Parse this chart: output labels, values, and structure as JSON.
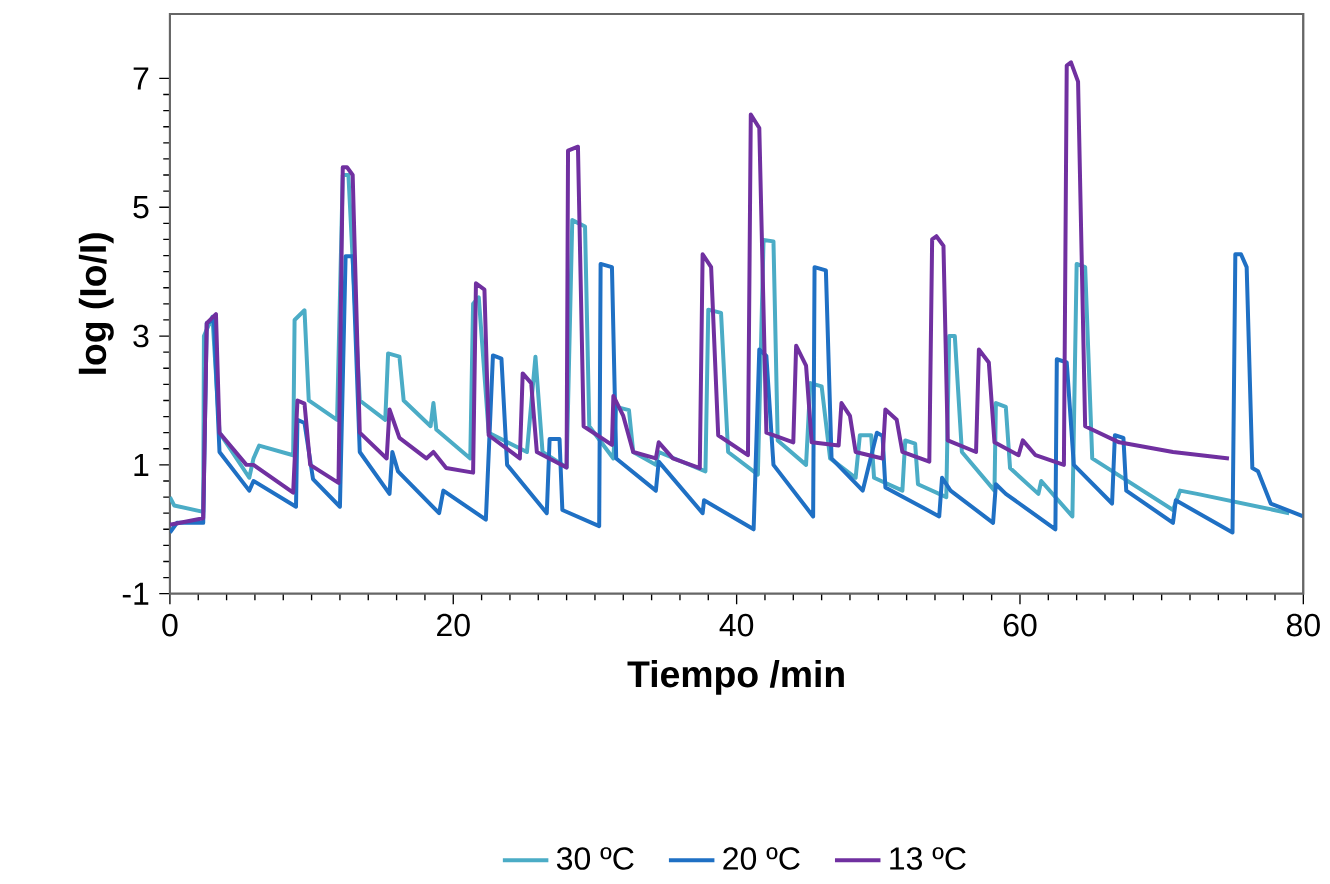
{
  "chart_data": {
    "type": "line",
    "xlabel": "Tiempo /min",
    "ylabel": "log (Io/I)",
    "xlim": [
      0,
      80
    ],
    "xticks": [
      0,
      20,
      40,
      60,
      80
    ],
    "ylim": [
      -1,
      8
    ],
    "yticks": [
      -1,
      1,
      3,
      5,
      7
    ],
    "grid": false,
    "legend": "bottom",
    "marker": "none",
    "line_style": "solid",
    "series": [
      {
        "name": "30 ºC",
        "color": "#4bacc6",
        "x": [
          0,
          0.3,
          2.35,
          2.4,
          3.0,
          3.5,
          5.6,
          5.9,
          6.3,
          8.7,
          8.8,
          9.5,
          9.8,
          11.8,
          12.2,
          12.6,
          13.4,
          15.2,
          15.4,
          16.2,
          16.5,
          18.4,
          18.6,
          18.8,
          21.2,
          21.4,
          21.8,
          22.5,
          25.2,
          25.8,
          26.3,
          28.0,
          28.4,
          29.3,
          29.6,
          31.3,
          31.5,
          32.4,
          32.7,
          34.3,
          34.5,
          37.8,
          38.0,
          38.9,
          39.4,
          41.5,
          41.9,
          42.6,
          42.9,
          44.9,
          45.2,
          46.0,
          46.6,
          48.4,
          48.7,
          49.5,
          49.7,
          51.7,
          51.9,
          52.6,
          52.8,
          54.8,
          55.0,
          55.4,
          55.9,
          58.2,
          58.3,
          59.0,
          59.3,
          61.3,
          61.5,
          63.7,
          64.0,
          64.6,
          65.1,
          70.8,
          71.3,
          72.5,
          79
        ],
        "values": [
          0.5,
          0.37,
          0.27,
          3.0,
          3.3,
          1.5,
          0.8,
          1.1,
          1.3,
          1.15,
          3.25,
          3.4,
          2.0,
          1.7,
          5.5,
          5.5,
          2.0,
          1.7,
          2.73,
          2.68,
          2.0,
          1.6,
          1.96,
          1.55,
          1.1,
          3.5,
          3.6,
          1.5,
          1.2,
          2.68,
          1.2,
          0.96,
          4.8,
          4.7,
          1.6,
          1.1,
          1.9,
          1.85,
          1.2,
          1.0,
          1.2,
          0.9,
          3.41,
          3.36,
          1.2,
          0.85,
          4.49,
          4.47,
          1.38,
          1.0,
          2.27,
          2.22,
          1.1,
          0.8,
          1.46,
          1.46,
          0.8,
          0.6,
          1.38,
          1.33,
          0.7,
          0.5,
          3.0,
          3.0,
          1.2,
          0.6,
          1.96,
          1.9,
          0.95,
          0.55,
          0.75,
          0.2,
          4.12,
          4.07,
          1.1,
          0.3,
          0.6,
          0.55,
          0.25
        ]
      },
      {
        "name": "20 ºC",
        "color": "#1f70c4",
        "x": [
          0,
          0.5,
          2.35,
          2.6,
          3.1,
          3.5,
          5.6,
          5.9,
          8.9,
          9.0,
          9.5,
          10.1,
          12.0,
          12.4,
          12.9,
          13.4,
          15.5,
          15.7,
          16.1,
          19.0,
          19.3,
          22.3,
          22.8,
          23.4,
          23.8,
          26.6,
          26.8,
          27.5,
          27.7,
          30.3,
          30.4,
          31.2,
          31.5,
          34.3,
          34.5,
          37.6,
          37.7,
          41.2,
          41.6,
          42.1,
          42.6,
          45.4,
          45.5,
          46.3,
          46.7,
          48.9,
          49.9,
          50.3,
          50.5,
          54.3,
          54.5,
          55.1,
          58.1,
          58.3,
          59.0,
          62.5,
          62.6,
          63.3,
          63.8,
          66.5,
          66.7,
          67.3,
          67.5,
          70.8,
          71.0,
          75.0,
          75.2,
          75.6,
          76.0,
          76.4,
          76.8,
          77.7,
          80
        ],
        "values": [
          -0.05,
          0.1,
          0.1,
          3.2,
          3.25,
          1.2,
          0.6,
          0.75,
          0.35,
          1.7,
          1.65,
          0.78,
          0.35,
          4.24,
          4.24,
          1.2,
          0.55,
          1.2,
          0.9,
          0.25,
          0.6,
          0.15,
          2.7,
          2.65,
          1.0,
          0.25,
          1.4,
          1.4,
          0.3,
          0.05,
          4.12,
          4.07,
          1.1,
          0.6,
          1.05,
          0.25,
          0.45,
          0.0,
          2.79,
          2.69,
          1.0,
          0.2,
          4.07,
          4.02,
          1.1,
          0.6,
          1.5,
          1.45,
          0.65,
          0.2,
          0.8,
          0.6,
          0.1,
          0.7,
          0.55,
          0.0,
          2.64,
          2.59,
          1.0,
          0.4,
          1.46,
          1.42,
          0.6,
          0.1,
          0.45,
          -0.05,
          4.27,
          4.27,
          4.07,
          0.95,
          0.9,
          0.4,
          0.2
        ]
      },
      {
        "name": "13 ºC",
        "color": "#7030a0",
        "x": [
          0,
          2.35,
          2.6,
          3.25,
          3.5,
          5.4,
          5.9,
          8.7,
          9.0,
          9.5,
          9.9,
          11.9,
          12.2,
          12.5,
          12.9,
          13.4,
          15.3,
          15.5,
          16.2,
          18.1,
          18.6,
          19.5,
          21.4,
          21.6,
          22.2,
          22.5,
          24.7,
          24.9,
          25.5,
          25.9,
          28.0,
          28.1,
          28.8,
          29.2,
          31.2,
          31.3,
          32.0,
          32.7,
          34.3,
          34.5,
          35.5,
          37.4,
          37.6,
          38.2,
          38.7,
          40.8,
          41.0,
          41.6,
          42.1,
          44.0,
          44.2,
          44.9,
          45.3,
          47.2,
          47.4,
          48.0,
          48.4,
          50.3,
          50.5,
          51.3,
          51.7,
          53.6,
          53.8,
          54.1,
          54.6,
          54.9,
          56.9,
          57.1,
          57.8,
          58.2,
          59.9,
          60.2,
          61.1,
          63.1,
          63.3,
          63.6,
          64.1,
          64.6,
          67.0,
          70.8,
          74.75
        ],
        "values": [
          0.07,
          0.17,
          3.2,
          3.34,
          1.5,
          1.0,
          1.0,
          0.57,
          2.0,
          1.95,
          1.0,
          0.72,
          5.62,
          5.62,
          5.5,
          1.5,
          1.1,
          1.86,
          1.42,
          1.1,
          1.2,
          0.95,
          0.88,
          3.82,
          3.72,
          1.46,
          1.1,
          2.42,
          2.27,
          1.2,
          0.96,
          5.88,
          5.94,
          1.6,
          1.31,
          2.07,
          1.76,
          1.2,
          1.1,
          1.35,
          1.1,
          0.95,
          4.27,
          4.07,
          1.46,
          1.15,
          6.44,
          6.23,
          1.5,
          1.35,
          2.85,
          2.54,
          1.35,
          1.3,
          1.96,
          1.76,
          1.2,
          1.1,
          1.86,
          1.7,
          1.2,
          1.05,
          4.5,
          4.55,
          4.4,
          1.38,
          1.2,
          2.79,
          2.59,
          1.35,
          1.15,
          1.38,
          1.15,
          1.0,
          7.2,
          7.25,
          6.95,
          1.6,
          1.35,
          1.2,
          1.1
        ]
      }
    ]
  }
}
